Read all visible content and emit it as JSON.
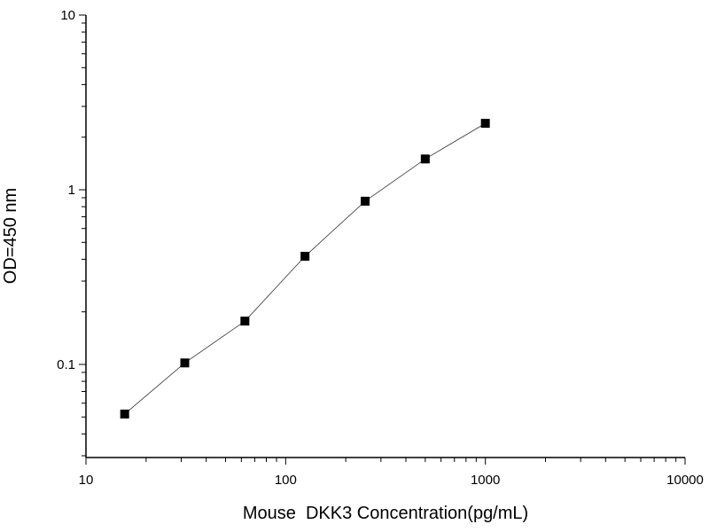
{
  "chart_data": {
    "type": "line",
    "title": "",
    "xlabel": "Mouse  DKK3 Concentration(pg/mL)",
    "ylabel": "OD=450 nm",
    "x_scale": "log",
    "y_scale": "log",
    "xlim": [
      10,
      10000
    ],
    "ylim": [
      0.03,
      10
    ],
    "x_ticks": [
      10,
      100,
      1000,
      10000
    ],
    "x_tick_labels": [
      "10",
      "100",
      "1000",
      "10000"
    ],
    "y_ticks": [
      0.1,
      1,
      10
    ],
    "y_tick_labels": [
      "0.1",
      "1",
      "10"
    ],
    "grid": false,
    "marker": "square",
    "color": "#000000",
    "series": [
      {
        "x": [
          15.625,
          31.25,
          62.5,
          125,
          250,
          500,
          1000
        ],
        "y": [
          0.052,
          0.102,
          0.177,
          0.416,
          0.86,
          1.5,
          2.4
        ]
      }
    ]
  }
}
